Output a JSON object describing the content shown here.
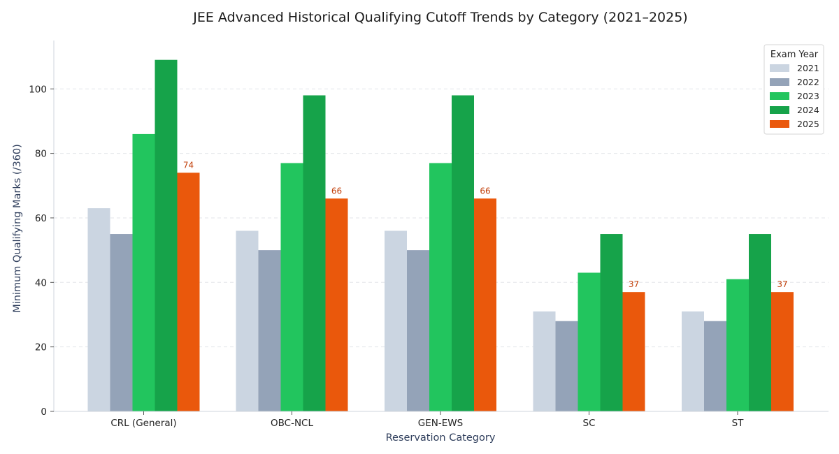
{
  "chart_data": {
    "type": "bar",
    "title": "JEE Advanced Historical Qualifying Cutoff Trends by Category (2021–2025)",
    "xlabel": "Reservation Category",
    "ylabel": "Minimum Qualifying Marks (/360)",
    "categories": [
      "CRL (General)",
      "OBC-NCL",
      "GEN-EWS",
      "SC",
      "ST"
    ],
    "ylim": [
      0,
      115
    ],
    "yticks": [
      0,
      20,
      40,
      60,
      80,
      100
    ],
    "grid": true,
    "legend": {
      "title": "Exam Year",
      "placement": "top-right"
    },
    "series": [
      {
        "name": "2021",
        "color": "#cbd5e1",
        "values": [
          63,
          56,
          56,
          31,
          31
        ]
      },
      {
        "name": "2022",
        "color": "#94a3b8",
        "values": [
          55,
          50,
          50,
          28,
          28
        ]
      },
      {
        "name": "2023",
        "color": "#22c55e",
        "values": [
          86,
          77,
          77,
          43,
          41
        ]
      },
      {
        "name": "2024",
        "color": "#16a34a",
        "values": [
          109,
          98,
          98,
          55,
          55
        ]
      },
      {
        "name": "2025",
        "color": "#ea580c",
        "values": [
          74,
          66,
          66,
          37,
          37
        ]
      }
    ],
    "data_labels": {
      "series": "2025",
      "color": "#c2410c",
      "values": [
        "74",
        "66",
        "66",
        "37",
        "37"
      ]
    }
  }
}
